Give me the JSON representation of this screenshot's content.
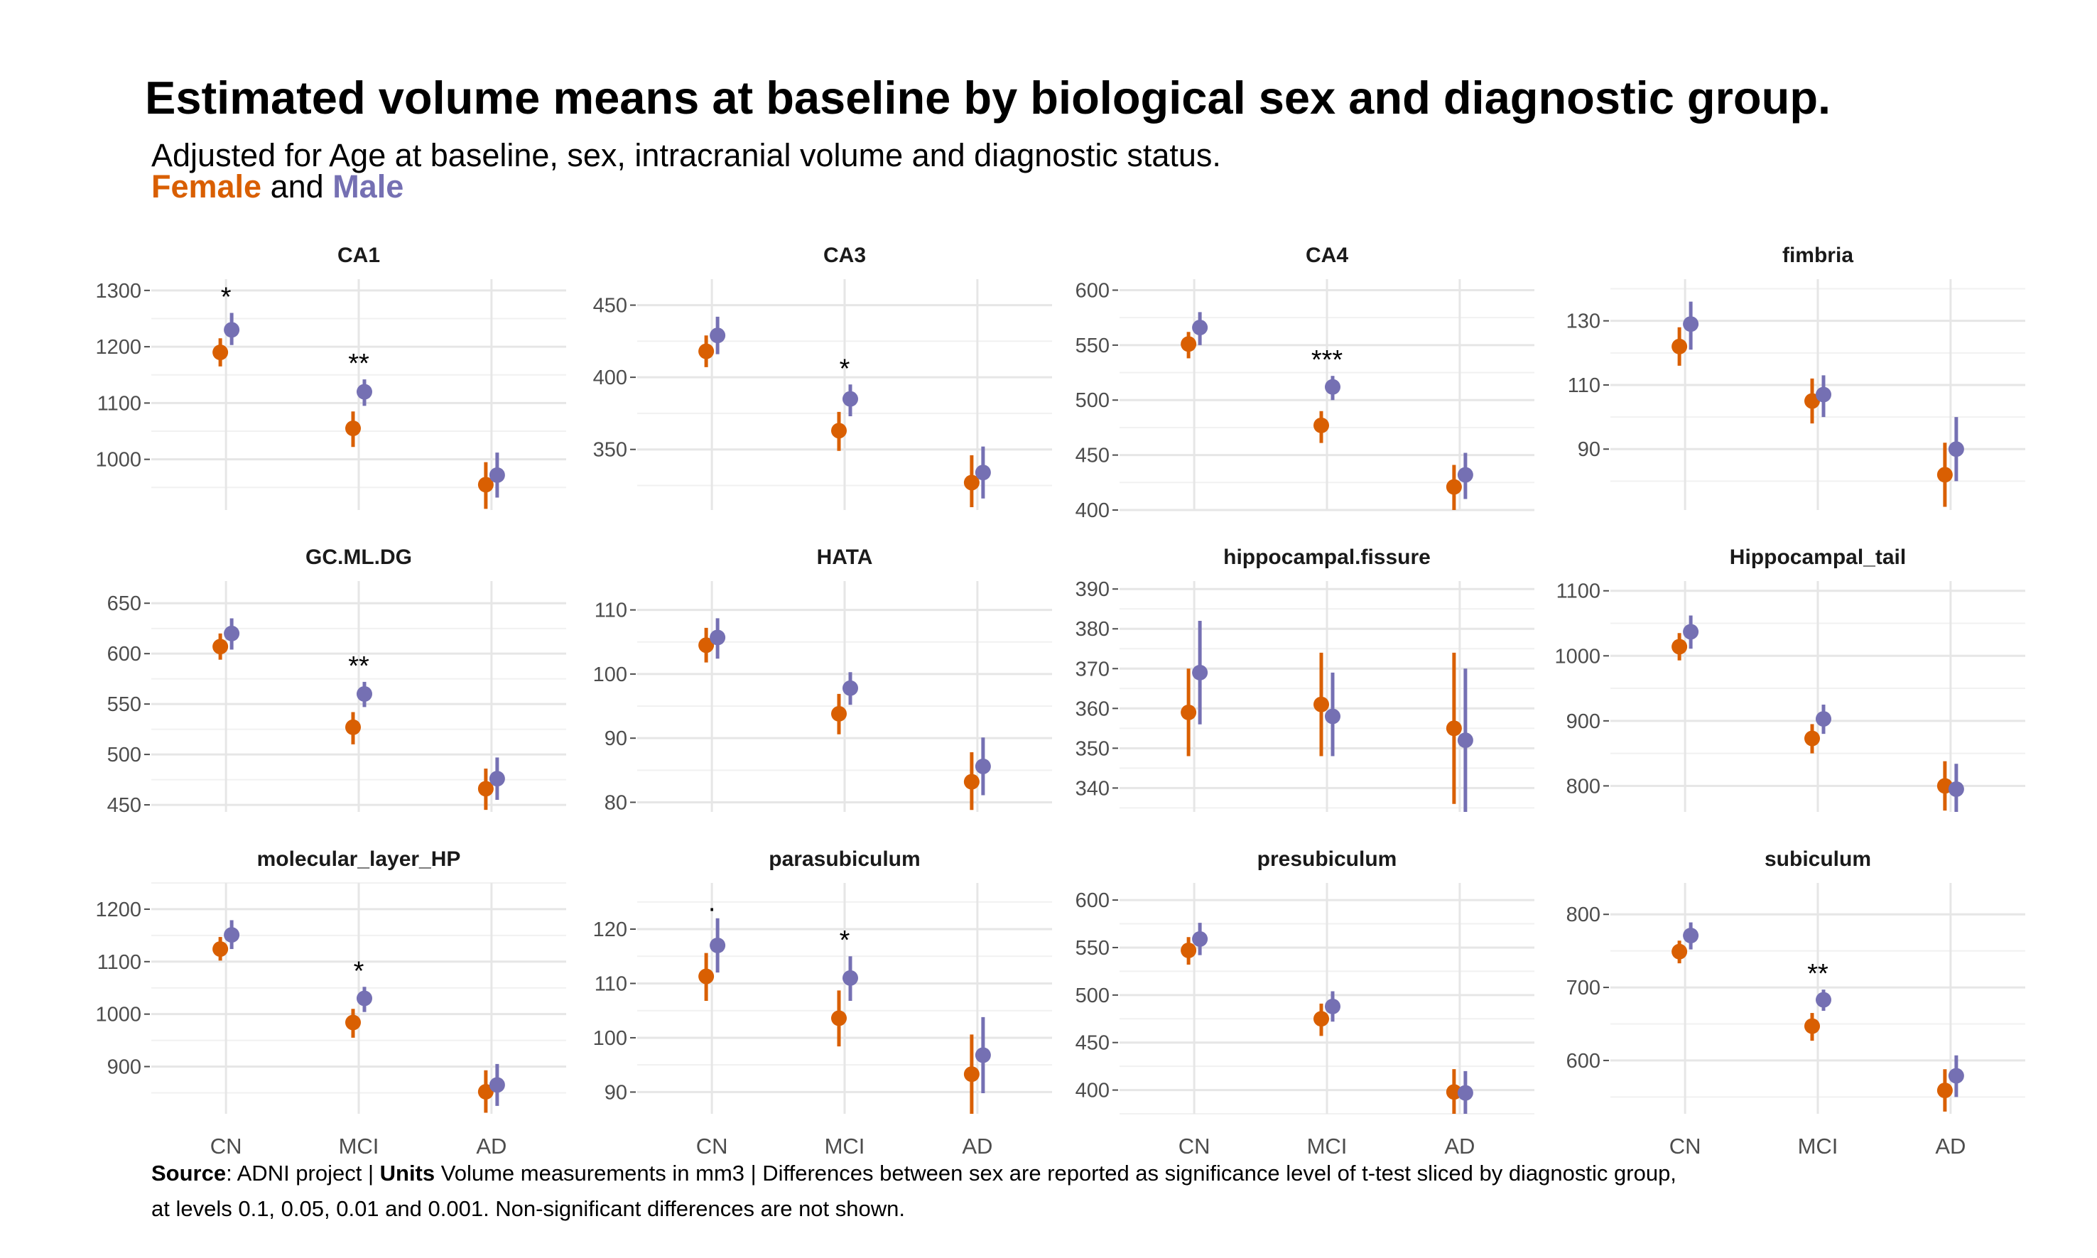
{
  "title": "Estimated volume means at baseline by biological sex and diagnostic group.",
  "subtitle": "Adjusted for Age at baseline, sex, intracranial volume and diagnostic status.",
  "legend": {
    "female_label": "Female",
    "and_label": " and ",
    "male_label": "Male",
    "female_color": "#D95F02",
    "male_color": "#7570B3"
  },
  "caption": {
    "source_label": "Source",
    "source_text": ": ADNI project | ",
    "units_label": "Units",
    "units_text": " Volume measurements in mm3 | Differences between sex are reported as significance level of t-test sliced by diagnostic group,",
    "line2": "at levels 0.1, 0.05, 0.01 and 0.001. Non-significant differences are not shown."
  },
  "chart_data": {
    "type": "scatter",
    "categories": [
      "CN",
      "MCI",
      "AD"
    ],
    "series_names": [
      "Female",
      "Male"
    ],
    "grid": true,
    "panels": [
      {
        "title": "CA1",
        "ylim": [
          910,
          1320
        ],
        "yticks": [
          1000,
          1100,
          1200,
          1300
        ],
        "female": [
          {
            "y": 1190,
            "lo": 1165,
            "hi": 1215
          },
          {
            "y": 1055,
            "lo": 1022,
            "hi": 1085
          },
          {
            "y": 955,
            "lo": 912,
            "hi": 995
          }
        ],
        "male": [
          {
            "y": 1230,
            "lo": 1203,
            "hi": 1260
          },
          {
            "y": 1120,
            "lo": 1095,
            "hi": 1142
          },
          {
            "y": 972,
            "lo": 932,
            "hi": 1012
          }
        ],
        "sig": [
          "*",
          "**",
          ""
        ]
      },
      {
        "title": "CA3",
        "ylim": [
          308,
          468
        ],
        "yticks": [
          350,
          400,
          450
        ],
        "female": [
          {
            "y": 418,
            "lo": 407,
            "hi": 429
          },
          {
            "y": 363,
            "lo": 349,
            "hi": 376
          },
          {
            "y": 327,
            "lo": 310,
            "hi": 346
          }
        ],
        "male": [
          {
            "y": 429,
            "lo": 416,
            "hi": 442
          },
          {
            "y": 385,
            "lo": 373,
            "hi": 395
          },
          {
            "y": 334,
            "lo": 316,
            "hi": 352
          }
        ],
        "sig": [
          "",
          "*",
          ""
        ]
      },
      {
        "title": "CA4",
        "ylim": [
          400,
          610
        ],
        "yticks": [
          400,
          450,
          500,
          550,
          600
        ],
        "female": [
          {
            "y": 551,
            "lo": 538,
            "hi": 562
          },
          {
            "y": 477,
            "lo": 461,
            "hi": 490
          },
          {
            "y": 421,
            "lo": 400,
            "hi": 441
          }
        ],
        "male": [
          {
            "y": 566,
            "lo": 550,
            "hi": 580
          },
          {
            "y": 512,
            "lo": 500,
            "hi": 522
          },
          {
            "y": 432,
            "lo": 410,
            "hi": 452
          }
        ],
        "sig": [
          "",
          "***",
          ""
        ]
      },
      {
        "title": "fimbria",
        "ylim": [
          71,
          143
        ],
        "yticks": [
          90,
          110,
          130
        ],
        "female": [
          {
            "y": 122,
            "lo": 116,
            "hi": 128
          },
          {
            "y": 105,
            "lo": 98,
            "hi": 112
          },
          {
            "y": 82,
            "lo": 72,
            "hi": 92
          }
        ],
        "male": [
          {
            "y": 129,
            "lo": 121,
            "hi": 136
          },
          {
            "y": 107,
            "lo": 100,
            "hi": 113
          },
          {
            "y": 90,
            "lo": 80,
            "hi": 100
          }
        ],
        "sig": [
          "",
          "",
          ""
        ]
      },
      {
        "title": "GC.ML.DG",
        "ylim": [
          443,
          672
        ],
        "yticks": [
          450,
          500,
          550,
          600,
          650
        ],
        "female": [
          {
            "y": 607,
            "lo": 594,
            "hi": 620
          },
          {
            "y": 527,
            "lo": 510,
            "hi": 542
          },
          {
            "y": 466,
            "lo": 445,
            "hi": 486
          }
        ],
        "male": [
          {
            "y": 620,
            "lo": 604,
            "hi": 635
          },
          {
            "y": 560,
            "lo": 547,
            "hi": 572
          },
          {
            "y": 476,
            "lo": 455,
            "hi": 497
          }
        ],
        "sig": [
          "",
          "**",
          ""
        ]
      },
      {
        "title": "HATA",
        "ylim": [
          78.5,
          114.5
        ],
        "yticks": [
          80,
          90,
          100,
          110
        ],
        "female": [
          {
            "y": 104.5,
            "lo": 101.8,
            "hi": 107.2
          },
          {
            "y": 93.8,
            "lo": 90.6,
            "hi": 96.9
          },
          {
            "y": 83.2,
            "lo": 78.8,
            "hi": 87.8
          }
        ],
        "male": [
          {
            "y": 105.7,
            "lo": 102.4,
            "hi": 108.7
          },
          {
            "y": 97.8,
            "lo": 95.2,
            "hi": 100.3
          },
          {
            "y": 85.6,
            "lo": 81.1,
            "hi": 90.1
          }
        ],
        "sig": [
          "",
          "",
          ""
        ]
      },
      {
        "title": "hippocampal.fissure",
        "ylim": [
          334,
          392
        ],
        "yticks": [
          340,
          350,
          360,
          370,
          380,
          390
        ],
        "female": [
          {
            "y": 359,
            "lo": 348,
            "hi": 370
          },
          {
            "y": 361,
            "lo": 348,
            "hi": 374
          },
          {
            "y": 355,
            "lo": 336,
            "hi": 374
          }
        ],
        "male": [
          {
            "y": 369,
            "lo": 356,
            "hi": 382
          },
          {
            "y": 358,
            "lo": 348,
            "hi": 369
          },
          {
            "y": 352,
            "lo": 334,
            "hi": 370
          }
        ],
        "sig": [
          "",
          "",
          ""
        ]
      },
      {
        "title": "Hippocampal_tail",
        "ylim": [
          760,
          1115
        ],
        "yticks": [
          800,
          900,
          1000,
          1100
        ],
        "female": [
          {
            "y": 1014,
            "lo": 993,
            "hi": 1035
          },
          {
            "y": 873,
            "lo": 850,
            "hi": 895
          },
          {
            "y": 800,
            "lo": 762,
            "hi": 838
          }
        ],
        "male": [
          {
            "y": 1037,
            "lo": 1011,
            "hi": 1062
          },
          {
            "y": 903,
            "lo": 880,
            "hi": 925
          },
          {
            "y": 795,
            "lo": 760,
            "hi": 834
          }
        ],
        "sig": [
          "",
          "",
          ""
        ]
      },
      {
        "title": "molecular_layer_HP",
        "ylim": [
          810,
          1250
        ],
        "yticks": [
          900,
          1000,
          1100,
          1200
        ],
        "female": [
          {
            "y": 1124,
            "lo": 1102,
            "hi": 1147
          },
          {
            "y": 984,
            "lo": 955,
            "hi": 1010
          },
          {
            "y": 852,
            "lo": 812,
            "hi": 893
          }
        ],
        "male": [
          {
            "y": 1151,
            "lo": 1124,
            "hi": 1179
          },
          {
            "y": 1030,
            "lo": 1004,
            "hi": 1052
          },
          {
            "y": 865,
            "lo": 825,
            "hi": 905
          }
        ],
        "sig": [
          "",
          "*",
          ""
        ]
      },
      {
        "title": "parasubiculum",
        "ylim": [
          86,
          128.5
        ],
        "yticks": [
          90,
          100,
          110,
          120
        ],
        "female": [
          {
            "y": 111.3,
            "lo": 106.8,
            "hi": 115.6
          },
          {
            "y": 103.6,
            "lo": 98.4,
            "hi": 108.7
          },
          {
            "y": 93.3,
            "lo": 86,
            "hi": 100.6
          }
        ],
        "male": [
          {
            "y": 117,
            "lo": 112,
            "hi": 122
          },
          {
            "y": 111,
            "lo": 106.8,
            "hi": 115
          },
          {
            "y": 96.8,
            "lo": 89.8,
            "hi": 103.8
          }
        ],
        "sig": [
          ".",
          "*",
          ""
        ]
      },
      {
        "title": "presubiculum",
        "ylim": [
          375,
          618
        ],
        "yticks": [
          400,
          450,
          500,
          550,
          600
        ],
        "female": [
          {
            "y": 547,
            "lo": 532,
            "hi": 561
          },
          {
            "y": 475,
            "lo": 457,
            "hi": 491
          },
          {
            "y": 398,
            "lo": 375,
            "hi": 422
          }
        ],
        "male": [
          {
            "y": 559,
            "lo": 542,
            "hi": 576
          },
          {
            "y": 488,
            "lo": 472,
            "hi": 504
          },
          {
            "y": 397,
            "lo": 375,
            "hi": 420
          }
        ],
        "sig": [
          "",
          "",
          ""
        ]
      },
      {
        "title": "subiculum",
        "ylim": [
          527,
          843
        ],
        "yticks": [
          600,
          700,
          800
        ],
        "female": [
          {
            "y": 749,
            "lo": 733,
            "hi": 764
          },
          {
            "y": 647,
            "lo": 627,
            "hi": 665
          },
          {
            "y": 559,
            "lo": 530,
            "hi": 588
          }
        ],
        "male": [
          {
            "y": 771,
            "lo": 752,
            "hi": 789
          },
          {
            "y": 683,
            "lo": 668,
            "hi": 697
          },
          {
            "y": 579,
            "lo": 550,
            "hi": 607
          }
        ],
        "sig": [
          "",
          "**",
          ""
        ]
      }
    ]
  }
}
